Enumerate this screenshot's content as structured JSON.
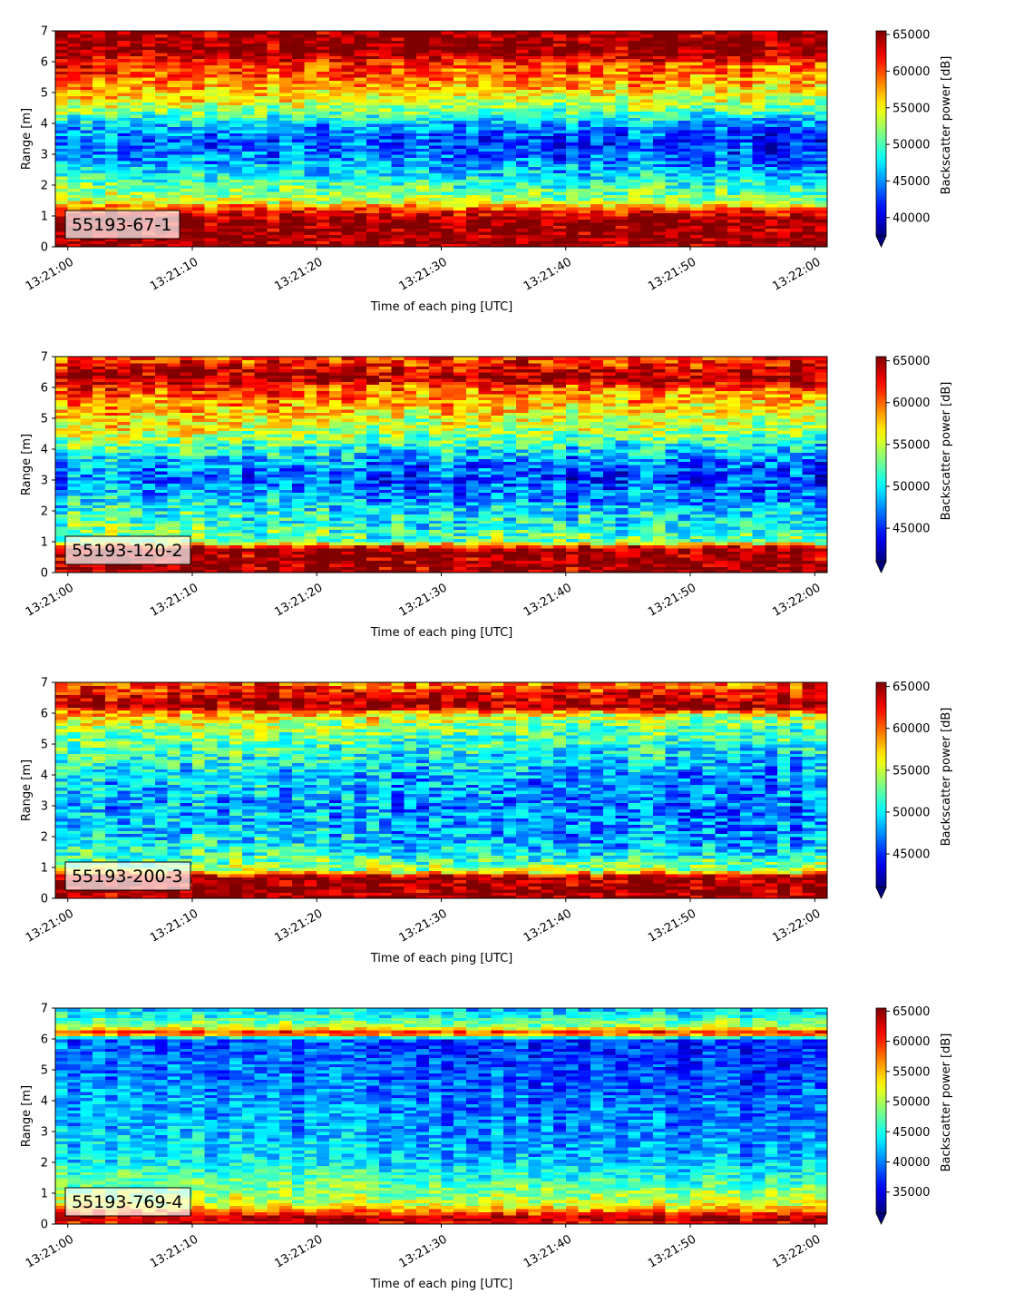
{
  "chart_data": [
    {
      "type": "heatmap",
      "label": "55193-67-1",
      "xlabel": "Time of each ping [UTC]",
      "ylabel": "Range [m]",
      "colorbar_label": "Backscatter power [dB]",
      "colormap": "jet",
      "colorbar_extend": "min",
      "x_ticks": [
        "13:21:00",
        "13:21:10",
        "13:21:20",
        "13:21:30",
        "13:21:40",
        "13:21:50",
        "13:22:00"
      ],
      "y_ticks": [
        0,
        1,
        2,
        3,
        4,
        5,
        6,
        7
      ],
      "ylim": [
        0,
        7
      ],
      "xlim_seconds": [
        -1,
        61
      ],
      "colorbar_ticks": [
        40000,
        45000,
        50000,
        55000,
        60000,
        65000
      ],
      "clim": [
        37500,
        65500
      ],
      "profile": [
        {
          "range": 0.0,
          "value": 65000
        },
        {
          "range": 0.2,
          "value": 65000
        },
        {
          "range": 0.9,
          "value": 65000
        },
        {
          "range": 1.2,
          "value": 61000
        },
        {
          "range": 1.5,
          "value": 53000
        },
        {
          "range": 2.0,
          "value": 50000
        },
        {
          "range": 2.5,
          "value": 46500
        },
        {
          "range": 3.0,
          "value": 44000
        },
        {
          "range": 3.5,
          "value": 43000
        },
        {
          "range": 4.0,
          "value": 46000
        },
        {
          "range": 4.5,
          "value": 52000
        },
        {
          "range": 5.0,
          "value": 56000
        },
        {
          "range": 5.5,
          "value": 59000
        },
        {
          "range": 6.0,
          "value": 61000
        },
        {
          "range": 6.3,
          "value": 65000
        },
        {
          "range": 7.0,
          "value": 65000
        }
      ]
    },
    {
      "type": "heatmap",
      "label": "55193-120-2",
      "xlabel": "Time of each ping [UTC]",
      "ylabel": "Range [m]",
      "colorbar_label": "Backscatter power [dB]",
      "colormap": "jet",
      "colorbar_extend": "min",
      "x_ticks": [
        "13:21:00",
        "13:21:10",
        "13:21:20",
        "13:21:30",
        "13:21:40",
        "13:21:50",
        "13:22:00"
      ],
      "y_ticks": [
        0,
        1,
        2,
        3,
        4,
        5,
        6,
        7
      ],
      "ylim": [
        0,
        7
      ],
      "xlim_seconds": [
        -1,
        61
      ],
      "colorbar_ticks": [
        45000,
        50000,
        55000,
        60000,
        65000
      ],
      "clim": [
        41000,
        65500
      ],
      "profile": [
        {
          "range": 0.0,
          "value": 65000
        },
        {
          "range": 0.8,
          "value": 65000
        },
        {
          "range": 1.0,
          "value": 53000
        },
        {
          "range": 1.5,
          "value": 51000
        },
        {
          "range": 2.0,
          "value": 50000
        },
        {
          "range": 2.5,
          "value": 47500
        },
        {
          "range": 3.0,
          "value": 46000
        },
        {
          "range": 3.5,
          "value": 47000
        },
        {
          "range": 4.0,
          "value": 50000
        },
        {
          "range": 4.5,
          "value": 54000
        },
        {
          "range": 5.0,
          "value": 56000
        },
        {
          "range": 5.5,
          "value": 58000
        },
        {
          "range": 6.0,
          "value": 60500
        },
        {
          "range": 6.3,
          "value": 65000
        },
        {
          "range": 6.8,
          "value": 62000
        },
        {
          "range": 7.0,
          "value": 61000
        }
      ]
    },
    {
      "type": "heatmap",
      "label": "55193-200-3",
      "xlabel": "Time of each ping [UTC]",
      "ylabel": "Range [m]",
      "colorbar_label": "Backscatter power [dB]",
      "colormap": "jet",
      "colorbar_extend": "min",
      "x_ticks": [
        "13:21:00",
        "13:21:10",
        "13:21:20",
        "13:21:30",
        "13:21:40",
        "13:21:50",
        "13:22:00"
      ],
      "y_ticks": [
        0,
        1,
        2,
        3,
        4,
        5,
        6,
        7
      ],
      "ylim": [
        0,
        7
      ],
      "xlim_seconds": [
        -1,
        61
      ],
      "colorbar_ticks": [
        45000,
        50000,
        55000,
        60000,
        65000
      ],
      "clim": [
        41000,
        65500
      ],
      "profile": [
        {
          "range": 0.0,
          "value": 65000
        },
        {
          "range": 0.7,
          "value": 65000
        },
        {
          "range": 0.9,
          "value": 55000
        },
        {
          "range": 1.5,
          "value": 50000
        },
        {
          "range": 2.0,
          "value": 48500
        },
        {
          "range": 3.0,
          "value": 47500
        },
        {
          "range": 4.0,
          "value": 48500
        },
        {
          "range": 5.0,
          "value": 51500
        },
        {
          "range": 5.5,
          "value": 53000
        },
        {
          "range": 6.0,
          "value": 57000
        },
        {
          "range": 6.2,
          "value": 65000
        },
        {
          "range": 6.6,
          "value": 63000
        },
        {
          "range": 7.0,
          "value": 60000
        }
      ]
    },
    {
      "type": "heatmap",
      "label": "55193-769-4",
      "xlabel": "Time of each ping [UTC]",
      "ylabel": "Range [m]",
      "colorbar_label": "Backscatter power [dB]",
      "colormap": "jet",
      "colorbar_extend": "min",
      "x_ticks": [
        "13:21:00",
        "13:21:10",
        "13:21:20",
        "13:21:30",
        "13:21:40",
        "13:21:50",
        "13:22:00"
      ],
      "y_ticks": [
        0,
        1,
        2,
        3,
        4,
        5,
        6,
        7
      ],
      "ylim": [
        0,
        7
      ],
      "xlim_seconds": [
        -1,
        61
      ],
      "colorbar_ticks": [
        35000,
        40000,
        45000,
        50000,
        55000,
        60000,
        65000
      ],
      "clim": [
        31500,
        65500
      ],
      "profile": [
        {
          "range": 0.0,
          "value": 60000
        },
        {
          "range": 0.2,
          "value": 65000
        },
        {
          "range": 0.4,
          "value": 58000
        },
        {
          "range": 0.6,
          "value": 52000
        },
        {
          "range": 1.0,
          "value": 49000
        },
        {
          "range": 1.5,
          "value": 46000
        },
        {
          "range": 2.0,
          "value": 43000
        },
        {
          "range": 3.0,
          "value": 41000
        },
        {
          "range": 4.0,
          "value": 40000
        },
        {
          "range": 5.0,
          "value": 38500
        },
        {
          "range": 6.0,
          "value": 38000
        },
        {
          "range": 6.2,
          "value": 62000
        },
        {
          "range": 6.4,
          "value": 50000
        },
        {
          "range": 7.0,
          "value": 42000
        }
      ]
    }
  ]
}
